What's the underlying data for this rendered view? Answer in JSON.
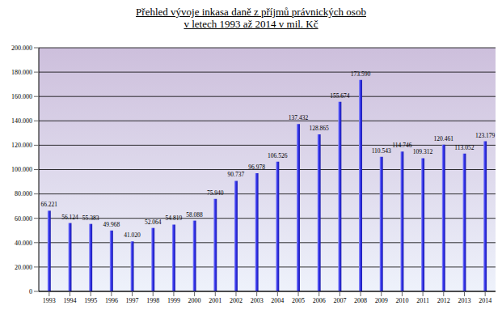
{
  "chart_data": {
    "type": "bar",
    "title": "Přehled vývoje inkasa daně z příjmů právnických osob",
    "subtitle": "v letech 1993 až 2014 v mil. Kč",
    "categories": [
      "1993",
      "1994",
      "1995",
      "1996",
      "1997",
      "1998",
      "1999",
      "2000",
      "2001",
      "2002",
      "2003",
      "2004",
      "2005",
      "2006",
      "2007",
      "2008",
      "2009",
      "2010",
      "2011",
      "2012",
      "2013",
      "2014"
    ],
    "values": [
      66221,
      56124,
      55383,
      49968,
      41020,
      52064,
      54819,
      58088,
      75940,
      90737,
      96978,
      106526,
      137432,
      128865,
      155674,
      173590,
      110543,
      114746,
      109312,
      120461,
      113052,
      123179
    ],
    "value_labels": [
      "66.221",
      "56.124",
      "55.383",
      "49.968",
      "41.020",
      "52.064",
      "54.819",
      "58.088",
      "75.940",
      "90.737",
      "96.978",
      "106.526",
      "137.432",
      "128.865",
      "155.674",
      "173.590",
      "110.543",
      "114.746",
      "109.312",
      "120.461",
      "113.052",
      "123.179"
    ],
    "data_labels": true,
    "color": "#3333ee",
    "ylim": [
      0,
      200000
    ],
    "yticks": [
      0,
      {
        "value": 20000,
        "label": "20.000"
      },
      {
        "value": 40000,
        "label": "40.000"
      },
      {
        "value": 60000,
        "label": "60.000"
      },
      {
        "value": 80000,
        "label": "80.000"
      },
      {
        "value": 100000,
        "label": "100.000"
      },
      {
        "value": 120000,
        "label": "120.000"
      },
      {
        "value": 140000,
        "label": "140.000"
      },
      {
        "value": 160000,
        "label": "160.000"
      },
      {
        "value": 180000,
        "label": "180.000"
      },
      {
        "value": 200000,
        "label": "200.000"
      }
    ],
    "grid": true
  }
}
